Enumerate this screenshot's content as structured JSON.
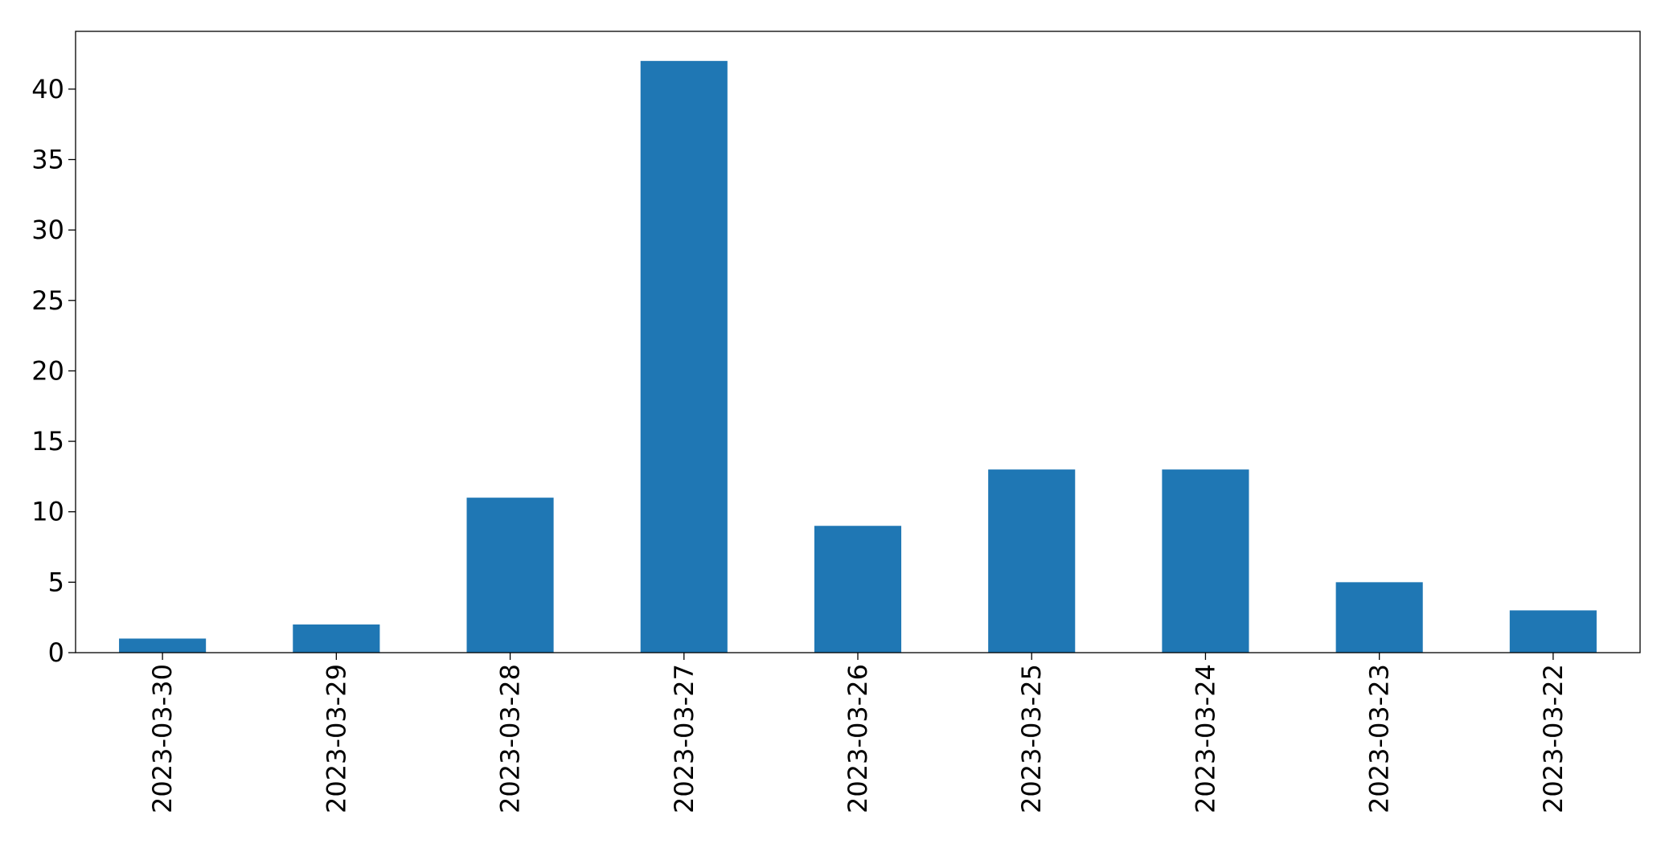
{
  "chart_data": {
    "type": "bar",
    "title": "",
    "xlabel": "",
    "ylabel": "",
    "categories": [
      "2023-03-30",
      "2023-03-29",
      "2023-03-28",
      "2023-03-27",
      "2023-03-26",
      "2023-03-25",
      "2023-03-24",
      "2023-03-23",
      "2023-03-22"
    ],
    "values": [
      1,
      2,
      11,
      42,
      9,
      13,
      13,
      5,
      3
    ],
    "ylim": [
      0,
      44.1
    ],
    "yticks": [
      0,
      5,
      10,
      15,
      20,
      25,
      30,
      35,
      40
    ],
    "grid": false,
    "legend": "none",
    "bar_color": "#1f77b4",
    "axis_color": "#000000",
    "x_tick_rotation": "vertical"
  }
}
